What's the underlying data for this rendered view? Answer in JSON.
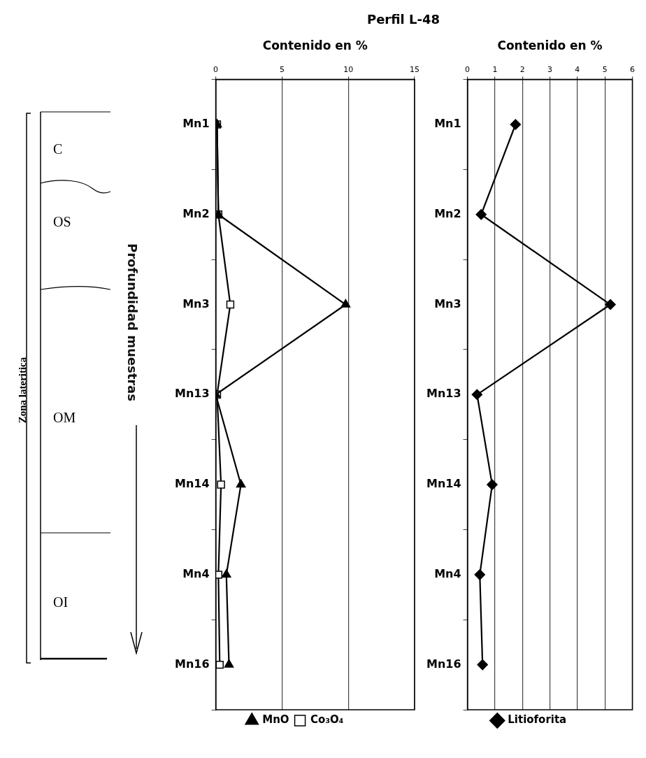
{
  "chart_data": [
    {
      "type": "other",
      "annotations": [
        "Zona lateritica",
        "C",
        "OS",
        "OM",
        "OI"
      ]
    },
    {
      "type": "line",
      "title": "Perfil L-48",
      "xlabel": "Contenido en %",
      "ylabel": "Profundidad muestras",
      "categories": [
        "Mn1",
        "Mn2",
        "Mn3",
        "Mn13",
        "Mn14",
        "Mn4",
        "Mn16"
      ],
      "series": [
        {
          "name": "MnO",
          "color": "#000000",
          "marker": "triangle",
          "values": [
            0.1,
            0.2,
            9.8,
            0,
            1.9,
            0.8,
            1.0
          ]
        },
        {
          "name": "Co₃O₄",
          "color": "#000000",
          "marker": "square",
          "values": [
            0.1,
            0.2,
            1.1,
            0.1,
            0.4,
            0.2,
            0.3
          ]
        }
      ],
      "orientation": "horizontal",
      "xlim": [
        0,
        15
      ],
      "xticks": [
        0,
        5,
        10,
        15
      ],
      "grid": "x",
      "legend": "bottom",
      "line_style": "solid"
    },
    {
      "type": "line",
      "xlabel": "Contenido en %",
      "categories": [
        "Mn1",
        "Mn2",
        "Mn3",
        "Mn13",
        "Mn14",
        "Mn4",
        "Mn16"
      ],
      "series": [
        {
          "name": "Litioforita",
          "color": "#000000",
          "marker": "diamond",
          "values": [
            1.75,
            0.5,
            5.2,
            0.35,
            0.9,
            0.45,
            0.55
          ]
        }
      ],
      "orientation": "horizontal",
      "xlim": [
        0,
        6
      ],
      "xticks": [
        0,
        1,
        2,
        3,
        4,
        5,
        6
      ],
      "grid": "x",
      "legend": "bottom",
      "line_style": "solid"
    }
  ]
}
